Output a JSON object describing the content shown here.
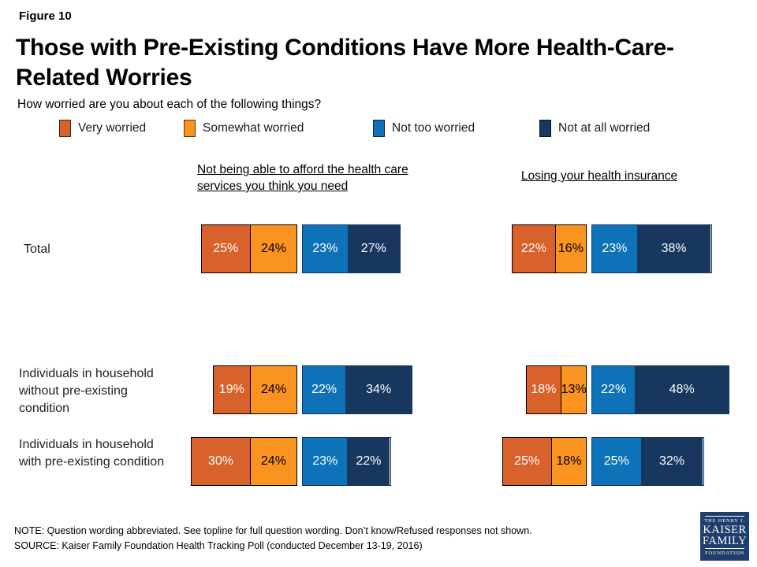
{
  "figure_label": "Figure 10",
  "title_line1": "Those with Pre-Existing Conditions Have More Health-Care-",
  "title_line2": "Related Worries",
  "subtitle": "How worried are you about each of the following things?",
  "note": "NOTE: Question wording abbreviated. See topline for full question wording. Don’t know/Refused responses not shown.",
  "source": "SOURCE: Kaiser Family Foundation Health Tracking Poll (conducted December 13-19, 2016)",
  "logo": {
    "line1": "THE HENRY J.",
    "line2": "KAISER",
    "line3": "FAMILY",
    "line4": "FOUNDATION"
  },
  "chart_data": {
    "type": "bar",
    "variant": "horizontal_stacked_diverging_pair",
    "unit": "%",
    "segments": [
      "Very worried",
      "Somewhat worried",
      "Not too worried",
      "Not at all worried"
    ],
    "segment_colors": [
      "#D9612C",
      "#FA9320",
      "#0E72B8",
      "#17375E"
    ],
    "segment_label_colors": [
      "#FFFFFF",
      "#000000",
      "#FFFFFF",
      "#FFFFFF"
    ],
    "questions": [
      "Not being able to afford the health care services you think you need",
      "Losing your health insurance"
    ],
    "rows": [
      {
        "category": "Total",
        "values": [
          [
            25,
            24,
            23,
            27
          ],
          [
            22,
            16,
            23,
            38
          ]
        ]
      },
      {
        "category": "Individuals in household without pre-existing condition",
        "values": [
          [
            19,
            24,
            22,
            34
          ],
          [
            18,
            13,
            22,
            48
          ]
        ]
      },
      {
        "category": "Individuals in household with pre-existing condition",
        "values": [
          [
            30,
            24,
            23,
            22
          ],
          [
            25,
            18,
            25,
            32
          ]
        ]
      }
    ]
  }
}
